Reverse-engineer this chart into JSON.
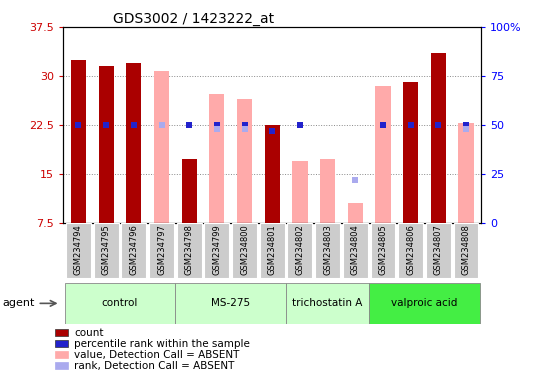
{
  "title": "GDS3002 / 1423222_at",
  "samples": [
    "GSM234794",
    "GSM234795",
    "GSM234796",
    "GSM234797",
    "GSM234798",
    "GSM234799",
    "GSM234800",
    "GSM234801",
    "GSM234802",
    "GSM234803",
    "GSM234804",
    "GSM234805",
    "GSM234806",
    "GSM234807",
    "GSM234808"
  ],
  "agents": [
    {
      "label": "control",
      "start": 0,
      "end": 4,
      "color": "#ccffcc"
    },
    {
      "label": "MS-275",
      "start": 4,
      "end": 8,
      "color": "#ccffcc"
    },
    {
      "label": "trichostatin A",
      "start": 8,
      "end": 11,
      "color": "#ccffcc"
    },
    {
      "label": "valproic acid",
      "start": 11,
      "end": 15,
      "color": "#44ee44"
    }
  ],
  "count_values": [
    32.5,
    31.5,
    32.0,
    null,
    17.2,
    null,
    null,
    22.5,
    null,
    null,
    null,
    null,
    29.0,
    33.5,
    null
  ],
  "count_color": "#aa0000",
  "value_absent": [
    null,
    null,
    null,
    30.8,
    null,
    27.2,
    26.5,
    null,
    17.0,
    17.3,
    10.5,
    28.5,
    null,
    null,
    22.7
  ],
  "value_absent_color": "#ffaaaa",
  "rank_present_pct": [
    50,
    50,
    50,
    null,
    50,
    50,
    50,
    47,
    50,
    null,
    null,
    50,
    50,
    50,
    50
  ],
  "rank_present_color": "#2222cc",
  "rank_absent_pct": [
    null,
    null,
    null,
    50,
    null,
    48,
    48,
    null,
    null,
    null,
    22,
    null,
    null,
    null,
    48
  ],
  "rank_absent_color": "#aaaaee",
  "ylim_left": [
    7.5,
    37.5
  ],
  "ylim_right": [
    0,
    100
  ],
  "left_ticks": [
    7.5,
    15.0,
    22.5,
    30.0,
    37.5
  ],
  "right_ticks": [
    0,
    25,
    50,
    75,
    100
  ],
  "left_tick_labels": [
    "7.5",
    "15",
    "22.5",
    "30",
    "37.5"
  ],
  "right_tick_labels": [
    "0",
    "25",
    "50",
    "75",
    "100%"
  ],
  "bar_width": 0.55,
  "legend_items": [
    {
      "color": "#aa0000",
      "label": "count"
    },
    {
      "color": "#2222cc",
      "label": "percentile rank within the sample"
    },
    {
      "color": "#ffaaaa",
      "label": "value, Detection Call = ABSENT"
    },
    {
      "color": "#aaaaee",
      "label": "rank, Detection Call = ABSENT"
    }
  ],
  "agent_label": "agent"
}
